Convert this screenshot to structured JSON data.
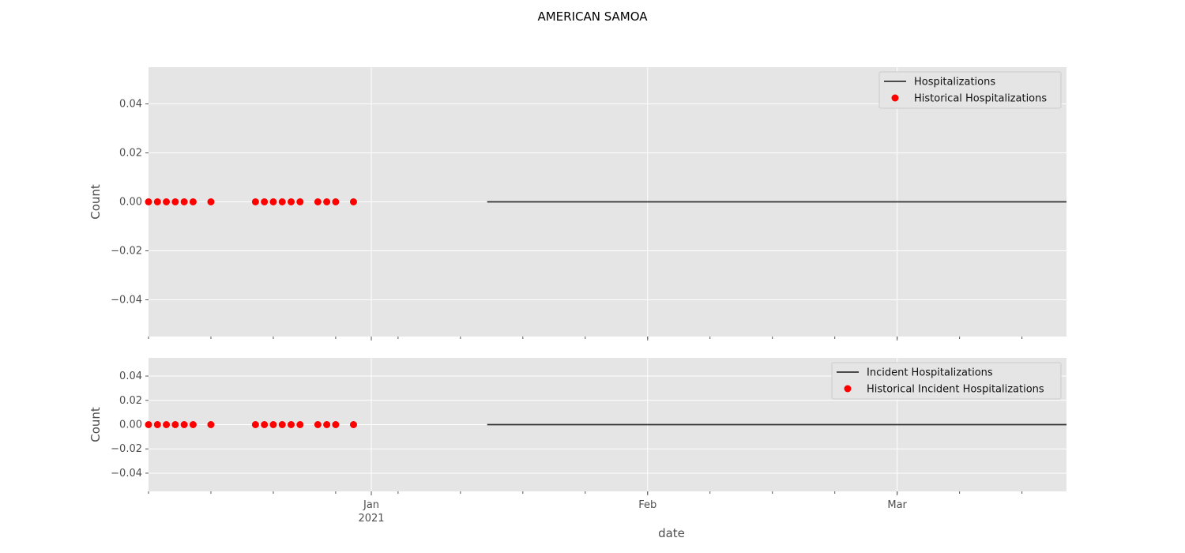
{
  "figure": {
    "title": "AMERICAN SAMOA"
  },
  "colors": {
    "line": "#333333",
    "points": "#ff0000",
    "background": "#e5e5e5",
    "grid": "#ffffff"
  },
  "chart_data": [
    {
      "type": "line",
      "ylabel": "Count",
      "xlabel": "",
      "ylim": [
        -0.055,
        0.055
      ],
      "yticks": [
        -0.04,
        -0.02,
        0.0,
        0.02,
        0.04
      ],
      "ytick_labels": [
        "−0.04",
        "−0.02",
        "0.00",
        "0.02",
        "0.04"
      ],
      "xlim": [
        "2020-12-07",
        "2021-03-20"
      ],
      "grid": true,
      "legend_position": "top-right",
      "series": [
        {
          "name": "Hospitalizations",
          "kind": "line",
          "x": [
            "2021-01-14",
            "2021-03-20"
          ],
          "y": [
            0,
            0
          ]
        },
        {
          "name": "Historical Hospitalizations",
          "kind": "scatter",
          "x": [
            "2020-12-07",
            "2020-12-08",
            "2020-12-09",
            "2020-12-10",
            "2020-12-11",
            "2020-12-12",
            "2020-12-14",
            "2020-12-19",
            "2020-12-20",
            "2020-12-21",
            "2020-12-22",
            "2020-12-23",
            "2020-12-24",
            "2020-12-26",
            "2020-12-27",
            "2020-12-28",
            "2020-12-30"
          ],
          "y": [
            0,
            0,
            0,
            0,
            0,
            0,
            0,
            0,
            0,
            0,
            0,
            0,
            0,
            0,
            0,
            0,
            0
          ]
        }
      ]
    },
    {
      "type": "line",
      "ylabel": "Count",
      "xlabel": "date",
      "ylim": [
        -0.055,
        0.055
      ],
      "yticks": [
        -0.04,
        -0.02,
        0.0,
        0.02,
        0.04
      ],
      "ytick_labels": [
        "−0.04",
        "−0.02",
        "0.00",
        "0.02",
        "0.04"
      ],
      "xlim": [
        "2020-12-07",
        "2021-03-20"
      ],
      "xticks": [
        {
          "date": "2021-01-01",
          "label": "Jan",
          "sublabel": "2021"
        },
        {
          "date": "2021-02-01",
          "label": "Feb",
          "sublabel": ""
        },
        {
          "date": "2021-03-01",
          "label": "Mar",
          "sublabel": ""
        }
      ],
      "grid": true,
      "legend_position": "top-right",
      "series": [
        {
          "name": "Incident Hospitalizations",
          "kind": "line",
          "x": [
            "2021-01-14",
            "2021-03-20"
          ],
          "y": [
            0,
            0
          ]
        },
        {
          "name": "Historical Incident Hospitalizations",
          "kind": "scatter",
          "x": [
            "2020-12-07",
            "2020-12-08",
            "2020-12-09",
            "2020-12-10",
            "2020-12-11",
            "2020-12-12",
            "2020-12-14",
            "2020-12-19",
            "2020-12-20",
            "2020-12-21",
            "2020-12-22",
            "2020-12-23",
            "2020-12-24",
            "2020-12-26",
            "2020-12-27",
            "2020-12-28",
            "2020-12-30"
          ],
          "y": [
            0,
            0,
            0,
            0,
            0,
            0,
            0,
            0,
            0,
            0,
            0,
            0,
            0,
            0,
            0,
            0,
            0
          ]
        }
      ]
    }
  ]
}
